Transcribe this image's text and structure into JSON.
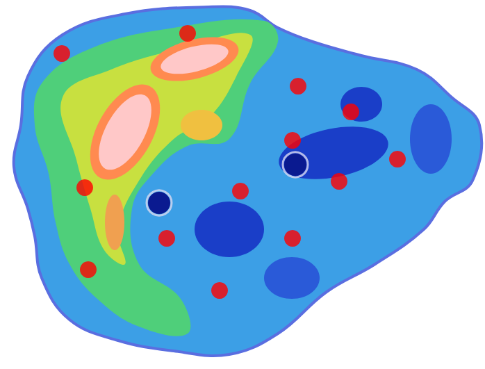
{
  "chart_data": {
    "type": "scatter",
    "xlim": [
      0,
      698
    ],
    "ylim": [
      531,
      0
    ],
    "tick_labels": false,
    "grid": false,
    "series": [
      {
        "color": "#ff0000",
        "marker": "circle",
        "x": [
          89,
          270,
          429,
          505,
          421,
          572,
          488,
          122,
          346,
          240,
          421,
          127,
          316
        ],
        "values": [
          77,
          48,
          124,
          161,
          202,
          229,
          261,
          270,
          275,
          343,
          343,
          388,
          418
        ]
      },
      {
        "color": "#d8d8f0",
        "marker": "ring",
        "x": [
          425,
          229
        ],
        "values": [
          237,
          292
        ]
      }
    ]
  }
}
